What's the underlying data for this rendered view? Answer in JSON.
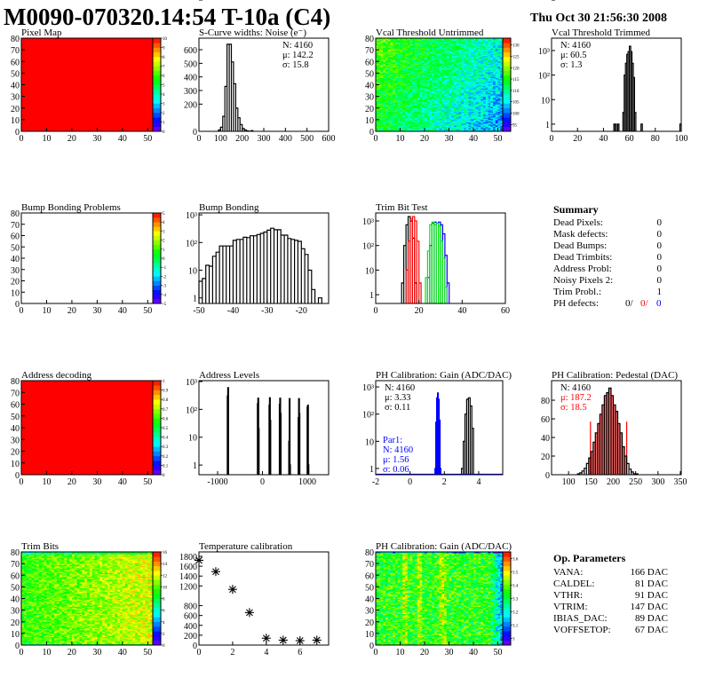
{
  "header": {
    "title": "M0090-070320.14:54 T-10a (C4)",
    "date": "Thu Oct 30 21:56:30 2008"
  },
  "summary": {
    "title": "Summary",
    "rows": [
      {
        "label": "Dead Pixels:",
        "value": "0"
      },
      {
        "label": "Mask defects:",
        "value": "0"
      },
      {
        "label": "Dead Bumps:",
        "value": "0"
      },
      {
        "label": "Dead Trimbits:",
        "value": "0"
      },
      {
        "label": "Address Probl:",
        "value": "0"
      },
      {
        "label": "Noisy Pixels 2:",
        "value": "0"
      },
      {
        "label": "Trim Probl.:",
        "value": "1"
      }
    ],
    "ph_defects": {
      "label": "PH defects:",
      "v1": "0/",
      "v2": "0/",
      "v3": "0",
      "c2": "#ff0000",
      "c3": "#0000ff"
    }
  },
  "op_params": {
    "title": "Op. Parameters",
    "rows": [
      {
        "label": "VANA:",
        "value": "166 DAC"
      },
      {
        "label": "CALDEL:",
        "value": "81 DAC"
      },
      {
        "label": "VTHR:",
        "value": "91 DAC"
      },
      {
        "label": "VTRIM:",
        "value": "147 DAC"
      },
      {
        "label": "IBIAS_DAC:",
        "value": "89 DAC"
      },
      {
        "label": "VOFFSETOP:",
        "value": "67 DAC"
      }
    ]
  },
  "chart_data": [
    {
      "id": "pixel-map",
      "type": "heatmap",
      "title": "Pixel Map",
      "xlim": [
        0,
        52
      ],
      "ylim": [
        0,
        80
      ],
      "xticks": [
        "0",
        "10",
        "20",
        "30",
        "40",
        "50"
      ],
      "yticks": [
        "0",
        "10",
        "20",
        "30",
        "40",
        "50",
        "60",
        "70",
        "80"
      ],
      "zlim": [
        0,
        10
      ],
      "zticks": [
        "0",
        "1",
        "2",
        "3",
        "4",
        "5",
        "6",
        "7",
        "8",
        "9",
        "10"
      ],
      "fill": "uniform-max",
      "color": "#ff0000"
    },
    {
      "id": "s-curve",
      "type": "hist",
      "title": "S-Curve widths: Noise (e⁻)",
      "xlim": [
        0,
        600
      ],
      "ylim": [
        0,
        685
      ],
      "log": false,
      "xticks": [
        "0",
        "100",
        "200",
        "300",
        "400",
        "500",
        "600"
      ],
      "yticks": [
        "0",
        "100",
        "200",
        "300",
        "400",
        "500",
        "600"
      ],
      "stats": [
        {
          "t": "N: 4160",
          "c": "#000"
        },
        {
          "t": "μ: 142.2",
          "c": "#000"
        },
        {
          "t": "σ: 15.8",
          "c": "#000"
        }
      ],
      "series": [
        {
          "color": "#000000",
          "width": 10,
          "x": [
            90,
            100,
            110,
            120,
            130,
            140,
            150,
            160,
            170,
            180,
            190,
            200,
            210,
            220,
            230,
            240
          ],
          "y": [
            10,
            30,
            110,
            330,
            640,
            640,
            510,
            350,
            170,
            100,
            50,
            20,
            10,
            3,
            0,
            5
          ]
        }
      ]
    },
    {
      "id": "vcal-untrimmed",
      "type": "heatmap",
      "title": "Vcal Threshold Untrimmed",
      "xlim": [
        0,
        52
      ],
      "ylim": [
        0,
        80
      ],
      "xticks": [
        "0",
        "10",
        "20",
        "30",
        "40",
        "50"
      ],
      "yticks": [
        "0",
        "10",
        "20",
        "30",
        "40",
        "50",
        "60",
        "70",
        "80"
      ],
      "zlim": [
        92,
        133
      ],
      "zticks": [
        "95",
        "100",
        "105",
        "110",
        "115",
        "120",
        "125",
        "130"
      ],
      "fill": "gradient-topleft-high",
      "zrange_center": [
        118,
        102
      ]
    },
    {
      "id": "vcal-trimmed",
      "type": "hist",
      "title": "Vcal Threshold Trimmed",
      "xlim": [
        0,
        100
      ],
      "ylim": [
        0.51,
        3200
      ],
      "log": true,
      "xticks": [
        "0",
        "20",
        "40",
        "60",
        "80",
        "100"
      ],
      "yticks": [
        "1",
        "10",
        "10²",
        "10³"
      ],
      "stats": [
        {
          "t": "N: 4160",
          "c": "#000"
        },
        {
          "t": "μ: 60.5",
          "c": "#000"
        },
        {
          "t": "σ:  1.3",
          "c": "#000"
        }
      ],
      "series": [
        {
          "color": "#000000",
          "width": 1,
          "x": [
            48,
            49,
            50,
            51,
            52,
            53,
            54,
            55,
            56,
            57,
            58,
            59,
            60,
            61,
            62,
            63,
            64,
            65,
            66,
            67,
            68,
            69,
            70,
            99
          ],
          "y": [
            1,
            1,
            0,
            1,
            0,
            0,
            0,
            3,
            100,
            300,
            700,
            900,
            1500,
            900,
            300,
            80,
            3,
            0,
            0,
            0,
            0,
            1,
            0,
            1
          ]
        }
      ]
    },
    {
      "id": "bump-bonding-problems",
      "type": "heatmap",
      "title": "Bump Bonding Problems",
      "xlim": [
        0,
        52
      ],
      "ylim": [
        0,
        80
      ],
      "xticks": [
        "0",
        "10",
        "20",
        "30",
        "40",
        "50"
      ],
      "yticks": [
        "0",
        "10",
        "20",
        "30",
        "40",
        "50",
        "60",
        "70",
        "80"
      ],
      "zlim": [
        -5,
        5
      ],
      "zticks": [
        "-5",
        "-4",
        "-3",
        "-2",
        "-1",
        "0",
        "1",
        "2",
        "3",
        "4",
        "5"
      ],
      "fill": "empty"
    },
    {
      "id": "bump-bonding",
      "type": "hist",
      "title": "Bump Bonding",
      "xlim": [
        -50,
        -12
      ],
      "ylim": [
        0.63,
        1170
      ],
      "log": true,
      "xticks": [
        "-50",
        "-40",
        "-30",
        "-20"
      ],
      "yticks": [
        "1",
        "10",
        "10²",
        "10³"
      ],
      "series": [
        {
          "color": "#000000",
          "width": 1,
          "x": [
            -50,
            -49,
            -48,
            -47,
            -46,
            -45,
            -44,
            -43,
            -42,
            -41,
            -40,
            -39,
            -38,
            -37,
            -36,
            -35,
            -34,
            -33,
            -32,
            -31,
            -30,
            -29,
            -28,
            -27,
            -26,
            -25,
            -24,
            -23,
            -22,
            -21,
            -20,
            -19,
            -18,
            -17,
            -16,
            -15
          ],
          "y": [
            4,
            5,
            15,
            14,
            32,
            45,
            75,
            75,
            75,
            75,
            120,
            130,
            130,
            155,
            150,
            175,
            175,
            195,
            215,
            240,
            280,
            330,
            290,
            290,
            185,
            185,
            140,
            130,
            120,
            110,
            60,
            37,
            10,
            2,
            0,
            1
          ]
        }
      ]
    },
    {
      "id": "trim-bit-test",
      "type": "hist",
      "title": "Trim Bit Test",
      "xlim": [
        0,
        60
      ],
      "ylim": [
        0.44,
        2110
      ],
      "log": true,
      "xticks": [
        "0",
        "20",
        "40",
        "60"
      ],
      "yticks": [
        "1",
        "10",
        "10²",
        "10³"
      ],
      "series": [
        {
          "color": "#000000",
          "width": 1,
          "x": [
            12,
            13,
            14,
            15,
            16,
            17,
            18
          ],
          "y": [
            3,
            100,
            700,
            1500,
            1000,
            200,
            3
          ]
        },
        {
          "color": "#ff0000",
          "width": 1,
          "x": [
            14,
            15,
            16,
            17,
            18,
            19,
            20
          ],
          "y": [
            10,
            150,
            1200,
            1500,
            1000,
            150,
            3
          ]
        },
        {
          "color": "#0000ff",
          "width": 1,
          "x": [
            24,
            25,
            26,
            27,
            28,
            29,
            30,
            31,
            32,
            33,
            34
          ],
          "y": [
            5,
            100,
            800,
            900,
            800,
            900,
            700,
            300,
            40,
            3,
            0
          ]
        },
        {
          "color": "#00ee00",
          "width": 1,
          "x": [
            23,
            24,
            25,
            26,
            27,
            28,
            29,
            30,
            31,
            32
          ],
          "y": [
            5,
            60,
            700,
            900,
            700,
            800,
            600,
            150,
            30,
            2
          ]
        }
      ]
    },
    {
      "id": "address-decoding",
      "type": "heatmap",
      "title": "Address decoding",
      "xlim": [
        0,
        52
      ],
      "ylim": [
        0,
        80
      ],
      "xticks": [
        "0",
        "10",
        "20",
        "30",
        "40",
        "50"
      ],
      "yticks": [
        "0",
        "10",
        "20",
        "30",
        "40",
        "50",
        "60",
        "70",
        "80"
      ],
      "zlim": [
        0,
        1
      ],
      "zticks": [
        "0",
        "0.1",
        "0.2",
        "0.3",
        "0.4",
        "0.5",
        "0.6",
        "0.7",
        "0.8",
        "0.9",
        "1"
      ],
      "fill": "uniform-max",
      "color": "#ff0000"
    },
    {
      "id": "address-levels",
      "type": "hist",
      "title": "Address Levels",
      "xlim": [
        -1416,
        1475
      ],
      "ylim": [
        0.45,
        1076
      ],
      "log": true,
      "xticks": [
        "-1000",
        "0",
        "1000"
      ],
      "yticks": [
        "1",
        "10",
        "10²",
        "10³"
      ],
      "series": [
        {
          "color": "#000000",
          "width": 10,
          "x": [
            -780,
            -770,
            -110,
            -100,
            -90,
            150,
            160,
            170,
            380,
            390,
            400,
            590,
            600,
            610,
            800,
            810,
            820,
            1000,
            1010,
            1020
          ],
          "y": [
            300,
            600,
            160,
            250,
            20,
            140,
            260,
            40,
            150,
            250,
            70,
            7,
            240,
            1,
            50,
            240,
            70,
            120,
            140,
            1
          ]
        }
      ]
    },
    {
      "id": "ph-gain",
      "type": "hist",
      "title": "PH Calibration: Gain (ADC/DAC)",
      "xlim": [
        -2,
        5.4
      ],
      "ylim": [
        0.59,
        1700
      ],
      "log": true,
      "xticks": [
        "-2",
        "0",
        "2",
        "4"
      ],
      "yticks": [
        "1",
        "10",
        "10²",
        "10³"
      ],
      "stats": [
        {
          "t": "N: 4160",
          "c": "#000"
        },
        {
          "t": "μ: 3.33",
          "c": "#000"
        },
        {
          "t": "σ: 0.11",
          "c": "#000"
        }
      ],
      "stats2": [
        {
          "t": "Par1:",
          "c": "#0000ff"
        },
        {
          "t": "N: 4160",
          "c": "#0000ff"
        },
        {
          "t": "μ: 1.56",
          "c": "#0000ff"
        },
        {
          "t": "σ: 0.06",
          "c": "#0000ff"
        }
      ],
      "series": [
        {
          "color": "#000000",
          "width": 0.1,
          "x": [
            3.0,
            3.1,
            3.2,
            3.3,
            3.4,
            3.5,
            3.6
          ],
          "y": [
            1,
            10,
            100,
            350,
            400,
            200,
            30
          ]
        },
        {
          "color": "#0000ff",
          "width": 0.05,
          "baseline": true,
          "x": [
            1.45,
            1.5,
            1.55,
            1.6,
            1.65,
            1.7,
            1.75
          ],
          "y": [
            1,
            50,
            400,
            600,
            350,
            60,
            1
          ]
        }
      ]
    },
    {
      "id": "ph-pedestal",
      "type": "hist",
      "title": "PH Calibration: Pedestal (DAC)",
      "xlim": [
        62,
        352
      ],
      "ylim": [
        0,
        101
      ],
      "log": false,
      "xticks": [
        "100",
        "150",
        "200",
        "250",
        "300",
        "350"
      ],
      "yticks": [
        "0",
        "20",
        "40",
        "60",
        "80",
        "100"
      ],
      "stats": [
        {
          "t": "N: 4160",
          "c": "#000"
        },
        {
          "t": "μ: 187.2",
          "c": "#ff0000"
        },
        {
          "t": "σ: 18.5",
          "c": "#ff0000"
        }
      ],
      "red_fill_range": [
        149,
        230
      ],
      "series": [
        {
          "color": "#000000",
          "width": 5,
          "x": [
            120,
            125,
            130,
            135,
            140,
            145,
            150,
            155,
            160,
            165,
            170,
            175,
            180,
            185,
            190,
            195,
            200,
            205,
            210,
            215,
            220,
            225,
            230,
            235,
            240,
            245,
            250
          ],
          "y": [
            1,
            2,
            4,
            7,
            12,
            18,
            25,
            35,
            45,
            55,
            65,
            75,
            85,
            88,
            93,
            85,
            75,
            68,
            55,
            45,
            30,
            20,
            12,
            6,
            3,
            1,
            1
          ]
        }
      ]
    },
    {
      "id": "trim-bits",
      "type": "heatmap",
      "title": "Trim Bits",
      "xlim": [
        0,
        52
      ],
      "ylim": [
        0,
        80
      ],
      "xticks": [
        "0",
        "10",
        "20",
        "30",
        "40",
        "50"
      ],
      "yticks": [
        "0",
        "10",
        "20",
        "30",
        "40",
        "50",
        "60",
        "70",
        "80"
      ],
      "zlim": [
        0,
        16
      ],
      "zticks": [
        "0",
        "2",
        "4",
        "6",
        "8",
        "10",
        "12",
        "14",
        "16"
      ],
      "fill": "gradient-right-high",
      "zrange_center": [
        9.5,
        12
      ]
    },
    {
      "id": "temperature-calibration",
      "type": "scatter",
      "title": "Temperature calibration",
      "xlim": [
        0,
        7.7
      ],
      "ylim": [
        0,
        1890
      ],
      "xticks": [
        "0",
        "2",
        "4",
        "6"
      ],
      "yticks": [
        "0",
        "200",
        "400",
        "600",
        "800",
        "1000",
        "1200",
        "1400",
        "1600",
        "1800"
      ],
      "x": [
        0,
        1,
        2,
        3,
        4,
        5,
        6,
        7
      ],
      "y": [
        1720,
        1490,
        1130,
        660,
        140,
        100,
        90,
        100
      ]
    },
    {
      "id": "ph-gain-map",
      "type": "heatmap",
      "title": "PH Calibration: Gain (ADC/DAC)",
      "xlim": [
        0,
        52
      ],
      "ylim": [
        0,
        80
      ],
      "xticks": [
        "0",
        "10",
        "20",
        "30",
        "40",
        "50"
      ],
      "yticks": [
        "0",
        "10",
        "20",
        "30",
        "40",
        "50",
        "60",
        "70",
        "80"
      ],
      "zlim": [
        2.95,
        3.65
      ],
      "zticks": [
        "3",
        "3.1",
        "3.2",
        "3.3",
        "3.4",
        "3.5",
        "3.6"
      ],
      "fill": "stripes",
      "zrange_center": [
        3.35,
        3.15
      ]
    }
  ]
}
